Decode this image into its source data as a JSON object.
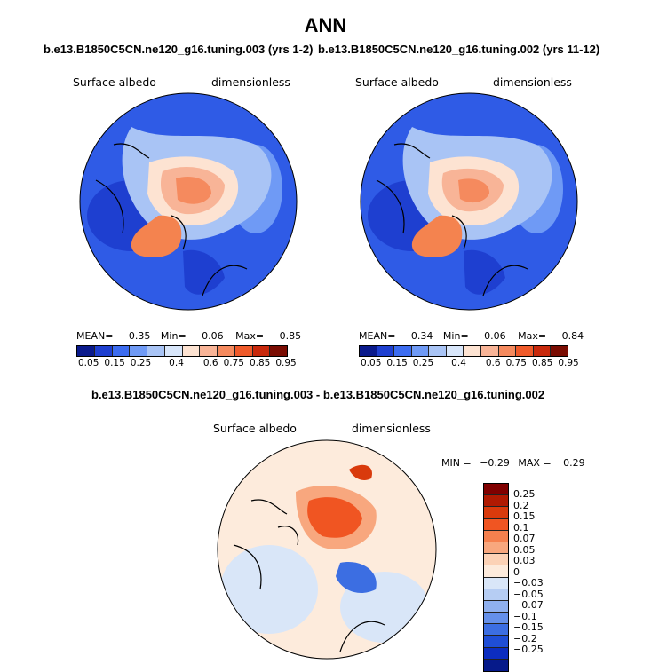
{
  "title": "ANN",
  "chart_data": [
    {
      "type": "heatmap",
      "projection": "polar-stereographic north",
      "case_title": "b.e13.B1850C5CN.ne120_g16.tuning.003 (yrs 1-2)",
      "variable": "Surface albedo",
      "units": "dimensionless",
      "mean_label": "MEAN=",
      "mean": "0.35",
      "min_label": "Min=",
      "min": "0.06",
      "max_label": "Max=",
      "max": "0.85",
      "levels": [
        "0.05",
        "0.15",
        "0.25",
        "0.4",
        "0.6",
        "0.75",
        "0.85",
        "0.95"
      ]
    },
    {
      "type": "heatmap",
      "projection": "polar-stereographic north",
      "case_title": "b.e13.B1850C5CN.ne120_g16.tuning.002 (yrs 11-12)",
      "variable": "Surface albedo",
      "units": "dimensionless",
      "mean_label": "MEAN=",
      "mean": "0.34",
      "min_label": "Min=",
      "min": "0.06",
      "max_label": "Max=",
      "max": "0.84",
      "levels": [
        "0.05",
        "0.15",
        "0.25",
        "0.4",
        "0.6",
        "0.75",
        "0.85",
        "0.95"
      ]
    },
    {
      "type": "heatmap",
      "projection": "polar-stereographic north",
      "case_title": "b.e13.B1850C5CN.ne120_g16.tuning.003 - b.e13.B1850C5CN.ne120_g16.tuning.002",
      "variable": "Surface albedo",
      "units": "dimensionless",
      "min_label": "MIN =",
      "min": "−0.29",
      "max_label": "MAX =",
      "max": "0.29",
      "levels": [
        "0.25",
        "0.2",
        "0.15",
        "0.1",
        "0.07",
        "0.05",
        "0.03",
        "0",
        "−0.03",
        "−0.05",
        "−0.07",
        "−0.1",
        "−0.15",
        "−0.2",
        "−0.25"
      ]
    }
  ],
  "colors": {
    "abs_scale": [
      "#0a1a8c",
      "#1e3fd0",
      "#3c6cf0",
      "#6f9af5",
      "#a9c4f5",
      "#d8e6fa",
      "#fde3d2",
      "#f8b497",
      "#f58a5e",
      "#ef5a2a",
      "#c8290c",
      "#7a0c02"
    ],
    "diff_scale": [
      "#800000",
      "#b01a02",
      "#d93a0c",
      "#f05522",
      "#f5804e",
      "#f8a77e",
      "#fcd2b6",
      "#fdebdc",
      "#d9e6f8",
      "#b6cdf3",
      "#8fb0ef",
      "#6590ea",
      "#3c6ee2",
      "#1f4ed6",
      "#0c2dc0",
      "#061a8a"
    ],
    "ocean_blue": "#2f5be6",
    "ice_orange": "#f4834f",
    "coast": "#000000"
  }
}
